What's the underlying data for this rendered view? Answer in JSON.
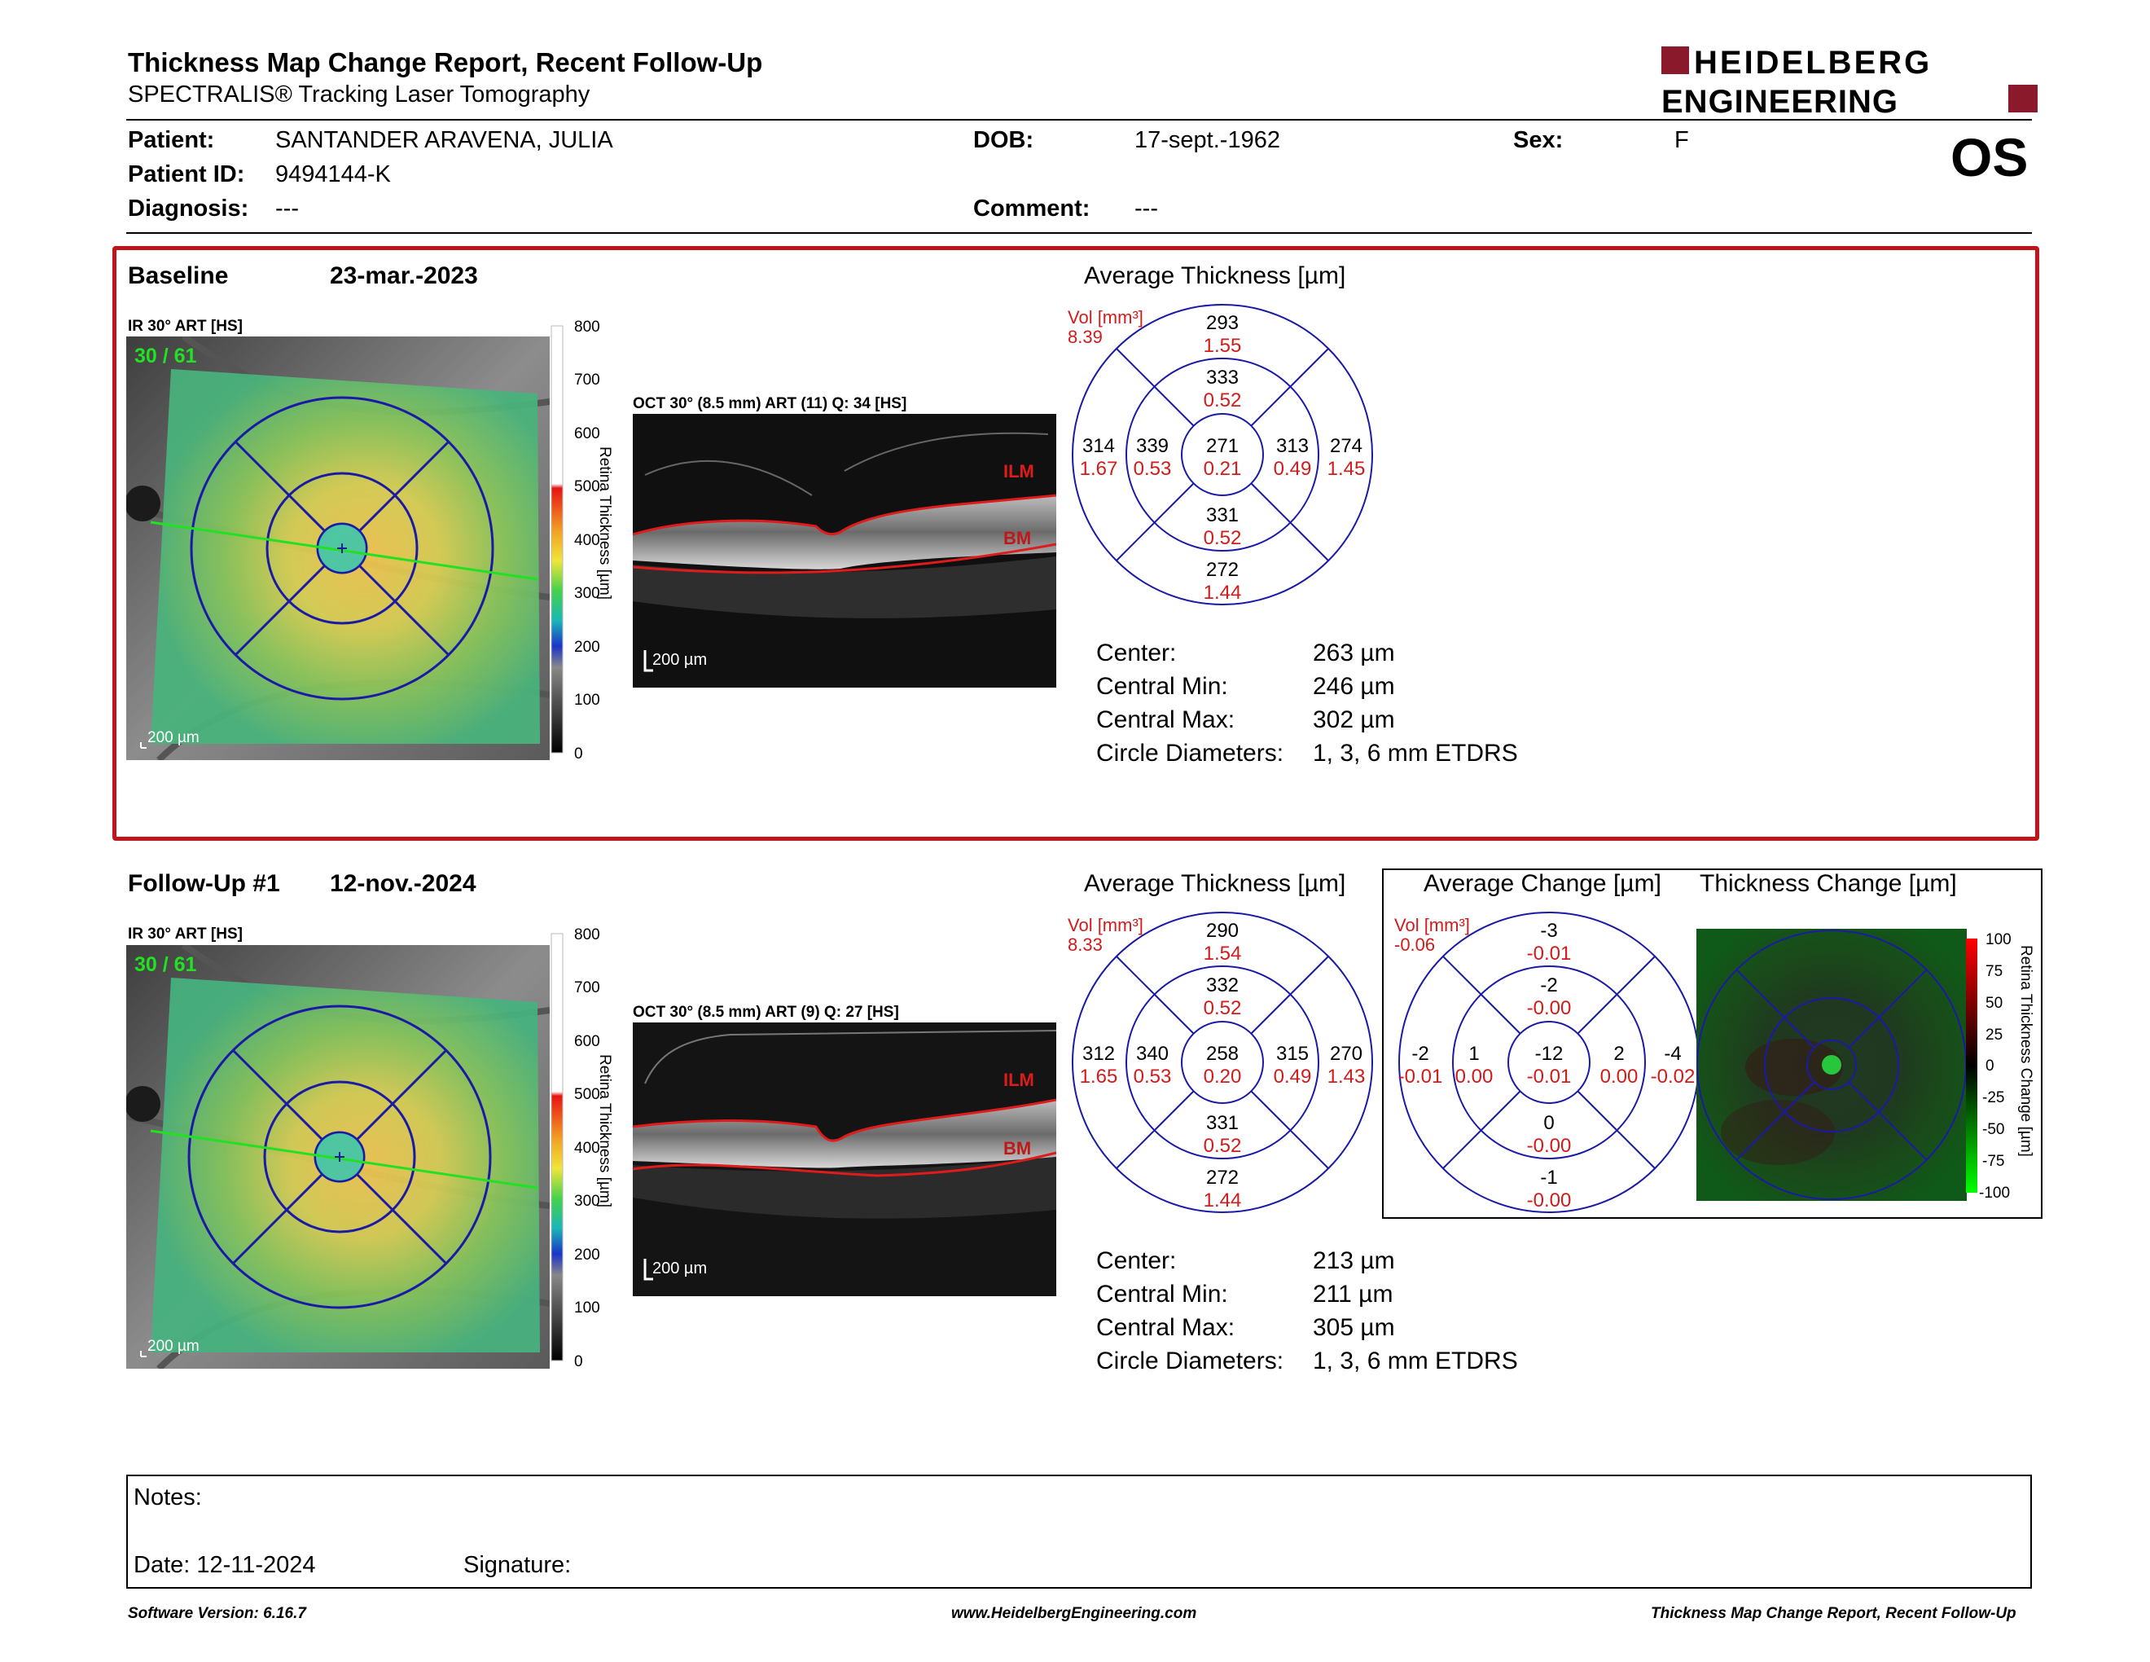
{
  "header": {
    "title": "Thickness Map Change Report, Recent Follow-Up",
    "subtitle": "SPECTRALIS® Tracking Laser Tomography",
    "logo_line1": "HEIDELBERG",
    "logo_line2": "ENGINEERING",
    "eye": "OS"
  },
  "patient": {
    "patient_label": "Patient:",
    "patient_value": "SANTANDER ARAVENA, JULIA",
    "id_label": "Patient ID:",
    "id_value": "9494144-K",
    "diagnosis_label": "Diagnosis:",
    "diagnosis_value": "---",
    "dob_label": "DOB:",
    "dob_value": "17-sept.-1962",
    "comment_label": "Comment:",
    "comment_value": "---",
    "sex_label": "Sex:",
    "sex_value": "F"
  },
  "common": {
    "ir_label": "IR 30° ART [HS]",
    "scale_200": "200 µm",
    "colorbar_title": "Retina Thickness [µm]",
    "colorbar_ticks": [
      "800",
      "700",
      "600",
      "500",
      "400",
      "300",
      "200",
      "100",
      "0"
    ],
    "avg_title": "Average Thickness [µm]",
    "vol_label": "Vol [mm³]",
    "ilm": "ILM",
    "bm": "BM",
    "center_label": "Center:",
    "min_label": "Central Min:",
    "max_label": "Central Max:",
    "diam_label": "Circle Diameters:",
    "diam_value": "1, 3, 6 mm ETDRS"
  },
  "baseline": {
    "name": "Baseline",
    "date": "23-mar.-2023",
    "ir_overlay": "30 / 61",
    "oct_label": "OCT 30° (8.5 mm) ART (11) Q: 34 [HS]",
    "vol_total": "8.39",
    "etdrs": {
      "outer_sup": "293",
      "outer_sup_v": "1.55",
      "inner_sup": "333",
      "inner_sup_v": "0.52",
      "outer_temp": "314",
      "outer_temp_v": "1.67",
      "inner_temp": "339",
      "inner_temp_v": "0.53",
      "center": "271",
      "center_v": "0.21",
      "inner_nas": "313",
      "inner_nas_v": "0.49",
      "outer_nas": "274",
      "outer_nas_v": "1.45",
      "inner_inf": "331",
      "inner_inf_v": "0.52",
      "outer_inf": "272",
      "outer_inf_v": "1.44"
    },
    "center_value": "263 µm",
    "min_value": "246 µm",
    "max_value": "302 µm"
  },
  "followup": {
    "name": "Follow-Up #1",
    "date": "12-nov.-2024",
    "ir_overlay": "30 / 61",
    "oct_label": "OCT 30° (8.5 mm) ART (9) Q: 27 [HS]",
    "vol_total": "8.33",
    "etdrs": {
      "outer_sup": "290",
      "outer_sup_v": "1.54",
      "inner_sup": "332",
      "inner_sup_v": "0.52",
      "outer_temp": "312",
      "outer_temp_v": "1.65",
      "inner_temp": "340",
      "inner_temp_v": "0.53",
      "center": "258",
      "center_v": "0.20",
      "inner_nas": "315",
      "inner_nas_v": "0.49",
      "outer_nas": "270",
      "outer_nas_v": "1.43",
      "inner_inf": "331",
      "inner_inf_v": "0.52",
      "outer_inf": "272",
      "outer_inf_v": "1.44"
    },
    "center_value": "213 µm",
    "min_value": "211 µm",
    "max_value": "305 µm"
  },
  "change": {
    "avg_title": "Average Change [µm]",
    "map_title": "Thickness Change [µm]",
    "vol_total": "-0.06",
    "colorbar_title": "Retina Thickness Change [µm]",
    "colorbar_ticks": [
      "100",
      "75",
      "50",
      "25",
      "0",
      "-25",
      "-50",
      "-75",
      "-100"
    ],
    "etdrs": {
      "outer_sup": "-3",
      "outer_sup_v": "-0.01",
      "inner_sup": "-2",
      "inner_sup_v": "-0.00",
      "outer_temp": "-2",
      "outer_temp_v": "-0.01",
      "inner_temp": "1",
      "inner_temp_v": "0.00",
      "center": "-12",
      "center_v": "-0.01",
      "inner_nas": "2",
      "inner_nas_v": "0.00",
      "outer_nas": "-4",
      "outer_nas_v": "-0.02",
      "inner_inf": "0",
      "inner_inf_v": "-0.00",
      "outer_inf": "-1",
      "outer_inf_v": "-0.00"
    }
  },
  "notes": {
    "notes_label": "Notes:",
    "date_label": "Date: 12-11-2024",
    "signature_label": "Signature:"
  },
  "footer": {
    "left": "Software Version: 6.16.7",
    "center": "www.HeidelbergEngineering.com",
    "right": "Thickness Map Change Report, Recent Follow-Up"
  },
  "colors": {
    "accent_red": "#c0151b",
    "logo_red": "#8a1a2b",
    "grid_blue": "#1a1aa6",
    "vol_red": "#d21b1b"
  }
}
